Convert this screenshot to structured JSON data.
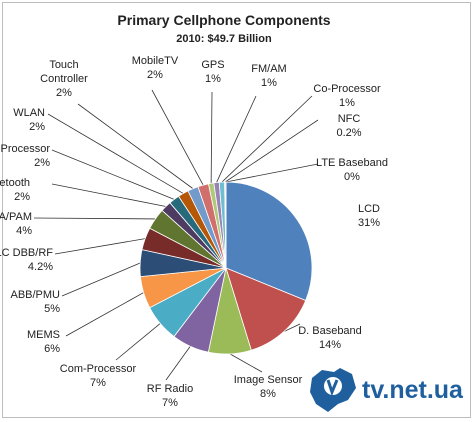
{
  "chart_data": {
    "type": "pie",
    "title": "Primary Cellphone  Components",
    "subtitle": "2010: $49.7 Billion",
    "slices": [
      {
        "name": "LCD",
        "value_label": "31%",
        "value": 31,
        "color": "#4f81bd"
      },
      {
        "name": "D. Baseband",
        "value_label": "14%",
        "value": 14,
        "color": "#c0504d"
      },
      {
        "name": "Image Sensor",
        "value_label": "8%",
        "value": 8,
        "color": "#9bbb59"
      },
      {
        "name": "RF Radio",
        "value_label": "7%",
        "value": 7,
        "color": "#8064a2"
      },
      {
        "name": "Com-Processor",
        "value_label": "7%",
        "value": 7,
        "color": "#4bacc6"
      },
      {
        "name": "MEMS",
        "value_label": "6%",
        "value": 6,
        "color": "#f79646"
      },
      {
        "name": "ABB/PMU",
        "value_label": "5%",
        "value": 5,
        "color": "#2c4d75"
      },
      {
        "name": "ULC DBB/RF",
        "value_label": "4.2%",
        "value": 4.2,
        "color": "#772c2a"
      },
      {
        "name": "PA/PAM",
        "value_label": "4%",
        "value": 4,
        "color": "#5f7530"
      },
      {
        "name": "Bluetooth",
        "value_label": "2%",
        "value": 2,
        "color": "#4d3b62"
      },
      {
        "name": "SA-Processor",
        "value_label": "2%",
        "value": 2,
        "color": "#276a7c"
      },
      {
        "name": "WLAN",
        "value_label": "2%",
        "value": 2,
        "color": "#b65708"
      },
      {
        "name": "Touch Controller",
        "value_label": "2%",
        "value": 2,
        "color": "#729aca"
      },
      {
        "name": "MobileTV",
        "value_label": "2%",
        "value": 2,
        "color": "#d16f6c"
      },
      {
        "name": "GPS",
        "value_label": "1%",
        "value": 1,
        "color": "#afc97a"
      },
      {
        "name": "FM/AM",
        "value_label": "1%",
        "value": 1,
        "color": "#9983b5"
      },
      {
        "name": "Co-Processor",
        "value_label": "1%",
        "value": 1,
        "color": "#6fbdd1"
      },
      {
        "name": "NFC",
        "value_label": "0.2%",
        "value": 0.2,
        "color": "#f9ab6b"
      },
      {
        "name": "LTE Baseband",
        "value_label": "0%",
        "value": 0.05,
        "color": "#3a5f8e"
      }
    ]
  },
  "watermark": {
    "text": "tv.net.ua",
    "icon": "ukraine-map-icon"
  }
}
